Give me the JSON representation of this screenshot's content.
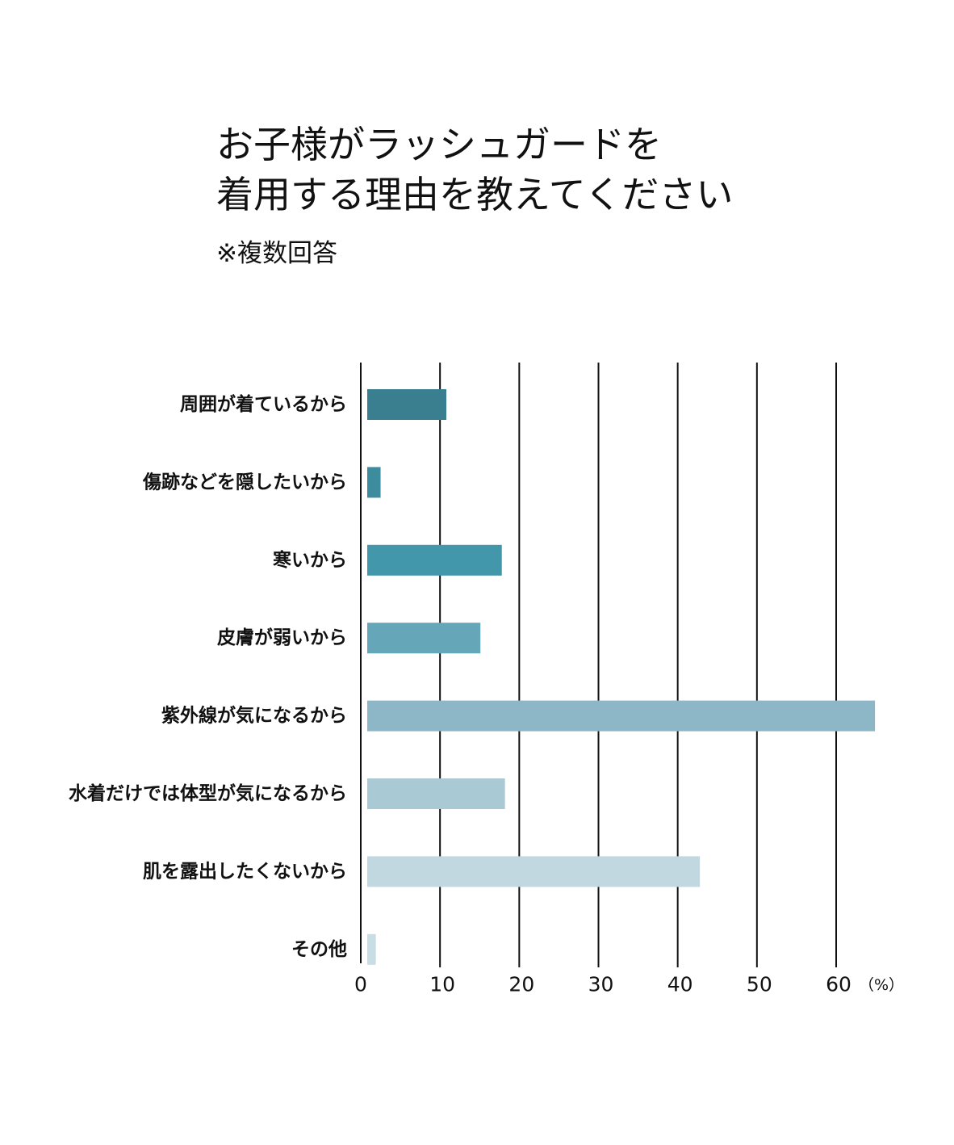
{
  "chart_data": {
    "type": "bar",
    "horizontal": true,
    "title_lines": [
      "お子様がラッシュガードを",
      "着用する理由を教えてください"
    ],
    "subtitle": "※複数回答",
    "categories": [
      "周囲が着ているから",
      "傷跡などを隠したいから",
      "寒いから",
      "皮膚が弱いから",
      "紫外線が気になるから",
      "水着だけでは体型が気になるから",
      "肌を露出したくないから",
      "その他"
    ],
    "values": [
      10.8,
      2.5,
      17.8,
      15.1,
      64.9,
      18.2,
      42.8,
      1.9
    ],
    "colors": [
      "#3a7f8f",
      "#3d8c9e",
      "#4397ab",
      "#65a6b9",
      "#8db6c6",
      "#a9c9d4",
      "#c1d8e1",
      "#c9dde5"
    ],
    "x_ticks": [
      0,
      10,
      20,
      30,
      40,
      50,
      60
    ],
    "x_tick_labels": [
      "0",
      "10",
      "20",
      "30",
      "40",
      "50",
      "60"
    ],
    "x_unit": "（%）",
    "xlim": [
      0,
      66
    ],
    "grid": true
  }
}
